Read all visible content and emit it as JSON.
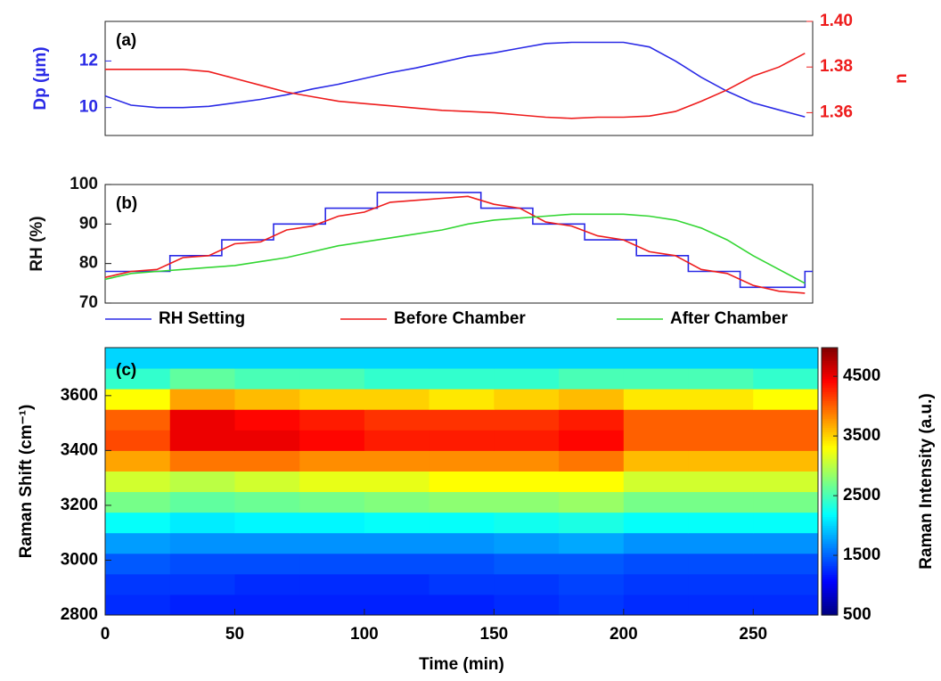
{
  "chart_data": [
    {
      "type": "line",
      "label": "(a)",
      "ylabel": "Dp (µm)",
      "y2label": "n",
      "xlim": [
        0,
        273
      ],
      "ylim": [
        8.8,
        13.7
      ],
      "yticks": [
        10,
        12
      ],
      "y2lim": [
        1.35,
        1.4
      ],
      "y2ticks": [
        1.36,
        1.38,
        {
          "value": 1.4,
          "label": "1.40"
        }
      ],
      "x": [
        0,
        10,
        20,
        30,
        40,
        50,
        60,
        70,
        80,
        90,
        100,
        110,
        120,
        130,
        140,
        150,
        160,
        170,
        180,
        190,
        200,
        210,
        220,
        230,
        240,
        250,
        260,
        270
      ],
      "series": [
        {
          "color": "#2a2ae6",
          "values": [
            10.5,
            10.1,
            10.0,
            10.0,
            10.05,
            10.2,
            10.35,
            10.55,
            10.8,
            11.0,
            11.25,
            11.5,
            11.7,
            11.95,
            12.2,
            12.35,
            12.55,
            12.75,
            12.8,
            12.8,
            12.8,
            12.6,
            12.0,
            11.3,
            10.7,
            10.2,
            9.9,
            9.6
          ]
        },
        {
          "color": "#ee1c1c",
          "axis": "y2",
          "values": [
            1.379,
            1.379,
            1.379,
            1.379,
            1.378,
            1.375,
            1.372,
            1.369,
            1.367,
            1.365,
            1.364,
            1.363,
            1.362,
            1.361,
            1.3605,
            1.36,
            1.359,
            1.358,
            1.3575,
            1.358,
            1.358,
            1.3585,
            1.3605,
            1.365,
            1.37,
            1.376,
            1.38,
            1.386
          ]
        }
      ]
    },
    {
      "type": "line",
      "label": "(b)",
      "ylabel": "RH (%)",
      "legend": "bottom",
      "xlim": [
        0,
        273
      ],
      "ylim": [
        70,
        100
      ],
      "yticks": [
        70,
        80,
        90,
        100
      ],
      "x": [
        0,
        10,
        20,
        30,
        40,
        50,
        60,
        70,
        80,
        90,
        100,
        110,
        120,
        130,
        140,
        150,
        160,
        170,
        180,
        190,
        200,
        210,
        220,
        230,
        240,
        250,
        260,
        270
      ],
      "series": [
        {
          "name": "RH Setting",
          "color": "#2a2ae6",
          "x": [
            0,
            25,
            25,
            45,
            45,
            65,
            65,
            85,
            85,
            105,
            105,
            145,
            145,
            165,
            165,
            185,
            185,
            205,
            205,
            225,
            225,
            245,
            245,
            270,
            270,
            273
          ],
          "values": [
            78,
            78,
            82,
            82,
            86,
            86,
            90,
            90,
            94,
            94,
            98,
            98,
            94,
            94,
            90,
            90,
            86,
            86,
            82,
            82,
            78,
            78,
            74,
            74,
            78,
            78
          ]
        },
        {
          "name": "Before Chamber",
          "color": "#ee1c1c",
          "values": [
            76.5,
            78,
            78.5,
            81.5,
            82,
            85,
            85.5,
            88.5,
            89.5,
            92,
            93,
            95.5,
            96,
            96.5,
            97,
            95,
            94,
            90.5,
            89.5,
            87,
            86,
            83,
            82,
            78.5,
            77.5,
            74.5,
            73,
            72.5
          ]
        },
        {
          "name": "After Chamber",
          "color": "#33d633",
          "values": [
            76,
            77.5,
            78,
            78.5,
            79,
            79.5,
            80.5,
            81.5,
            83,
            84.5,
            85.5,
            86.5,
            87.5,
            88.5,
            90,
            91,
            91.5,
            92,
            92.5,
            92.5,
            92.5,
            92,
            91,
            89,
            86,
            82,
            78.5,
            75
          ]
        }
      ]
    },
    {
      "type": "heatmap",
      "label": "(c)",
      "xlabel": "Time (min)",
      "ylabel": "Raman Shift (cm⁻¹)",
      "xlim": [
        0,
        275
      ],
      "xticks": [
        0,
        50,
        100,
        150,
        200,
        250
      ],
      "ylim": [
        2800,
        3775
      ],
      "yticks": [
        2800,
        3000,
        3200,
        3400,
        3600
      ],
      "xbins": [
        0,
        25,
        50,
        75,
        100,
        125,
        150,
        175,
        200,
        225,
        250,
        275
      ],
      "ybins": [
        2800,
        2875,
        2950,
        3025,
        3100,
        3175,
        3250,
        3325,
        3400,
        3475,
        3550,
        3625,
        3700,
        3775
      ],
      "z": [
        [
          1250,
          1200,
          1200,
          1200,
          1200,
          1200,
          1250,
          1300,
          1250,
          1250,
          1250
        ],
        [
          1300,
          1300,
          1250,
          1250,
          1250,
          1300,
          1300,
          1350,
          1300,
          1300,
          1300
        ],
        [
          1450,
          1400,
          1400,
          1400,
          1400,
          1400,
          1450,
          1450,
          1400,
          1400,
          1400
        ],
        [
          1750,
          1700,
          1700,
          1700,
          1700,
          1700,
          1750,
          1800,
          1700,
          1700,
          1700
        ],
        [
          2200,
          2100,
          2150,
          2150,
          2200,
          2200,
          2250,
          2300,
          2200,
          2200,
          2200
        ],
        [
          2700,
          2600,
          2650,
          2700,
          2750,
          2800,
          2800,
          2850,
          2700,
          2700,
          2700
        ],
        [
          3100,
          3000,
          3100,
          3200,
          3200,
          3300,
          3300,
          3300,
          3100,
          3100,
          3100
        ],
        [
          3700,
          3900,
          3900,
          3800,
          3800,
          3800,
          3800,
          3900,
          3600,
          3600,
          3600
        ],
        [
          4100,
          4500,
          4500,
          4400,
          4300,
          4300,
          4300,
          4400,
          4000,
          4000,
          4000
        ],
        [
          4000,
          4500,
          4400,
          4300,
          4200,
          4200,
          4200,
          4300,
          4000,
          4000,
          4000
        ],
        [
          3300,
          3700,
          3600,
          3500,
          3500,
          3400,
          3500,
          3600,
          3400,
          3400,
          3300
        ],
        [
          2400,
          2600,
          2500,
          2500,
          2400,
          2400,
          2400,
          2500,
          2500,
          2500,
          2400
        ],
        [
          2000,
          2000,
          2000,
          2000,
          2000,
          2000,
          2000,
          2000,
          2000,
          2000,
          2000
        ]
      ],
      "colormap": "jet",
      "clim": [
        500,
        4980
      ],
      "cticks": [
        500,
        1500,
        2500,
        3500,
        4500
      ],
      "clabel": "Raman Intensity (a.u.)"
    }
  ]
}
